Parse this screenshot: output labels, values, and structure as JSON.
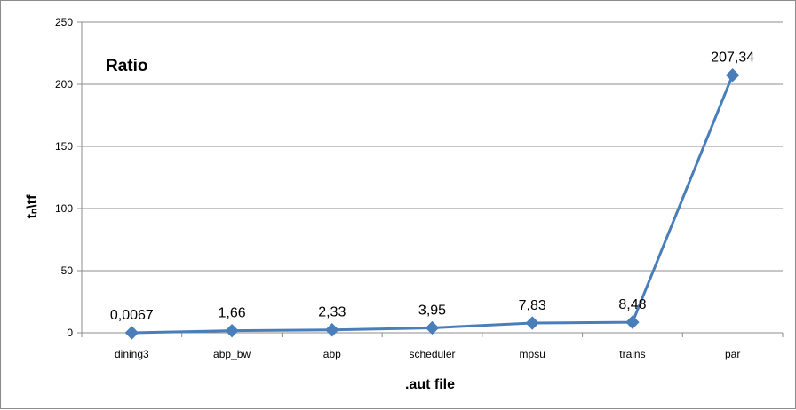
{
  "chart_data": {
    "type": "line",
    "title": "Ratio",
    "xlabel": ".aut file",
    "ylabel": "tₙ\\tf",
    "categories": [
      "dining3",
      "abp_bw",
      "abp",
      "scheduler",
      "mpsu",
      "trains",
      "par"
    ],
    "series": [
      {
        "values": [
          0.0067,
          1.66,
          2.33,
          3.95,
          7.83,
          8.48,
          207.34
        ],
        "labels": [
          "0,0067",
          "1,66",
          "2,33",
          "3,95",
          "7,83",
          "8,48",
          "207,34"
        ],
        "color": "#4a7ebb",
        "marker": "diamond"
      }
    ],
    "yticks": [
      "0",
      "50",
      "100",
      "150",
      "200",
      "250"
    ],
    "ylim": [
      0,
      250
    ],
    "grid": true,
    "legend": "none"
  }
}
